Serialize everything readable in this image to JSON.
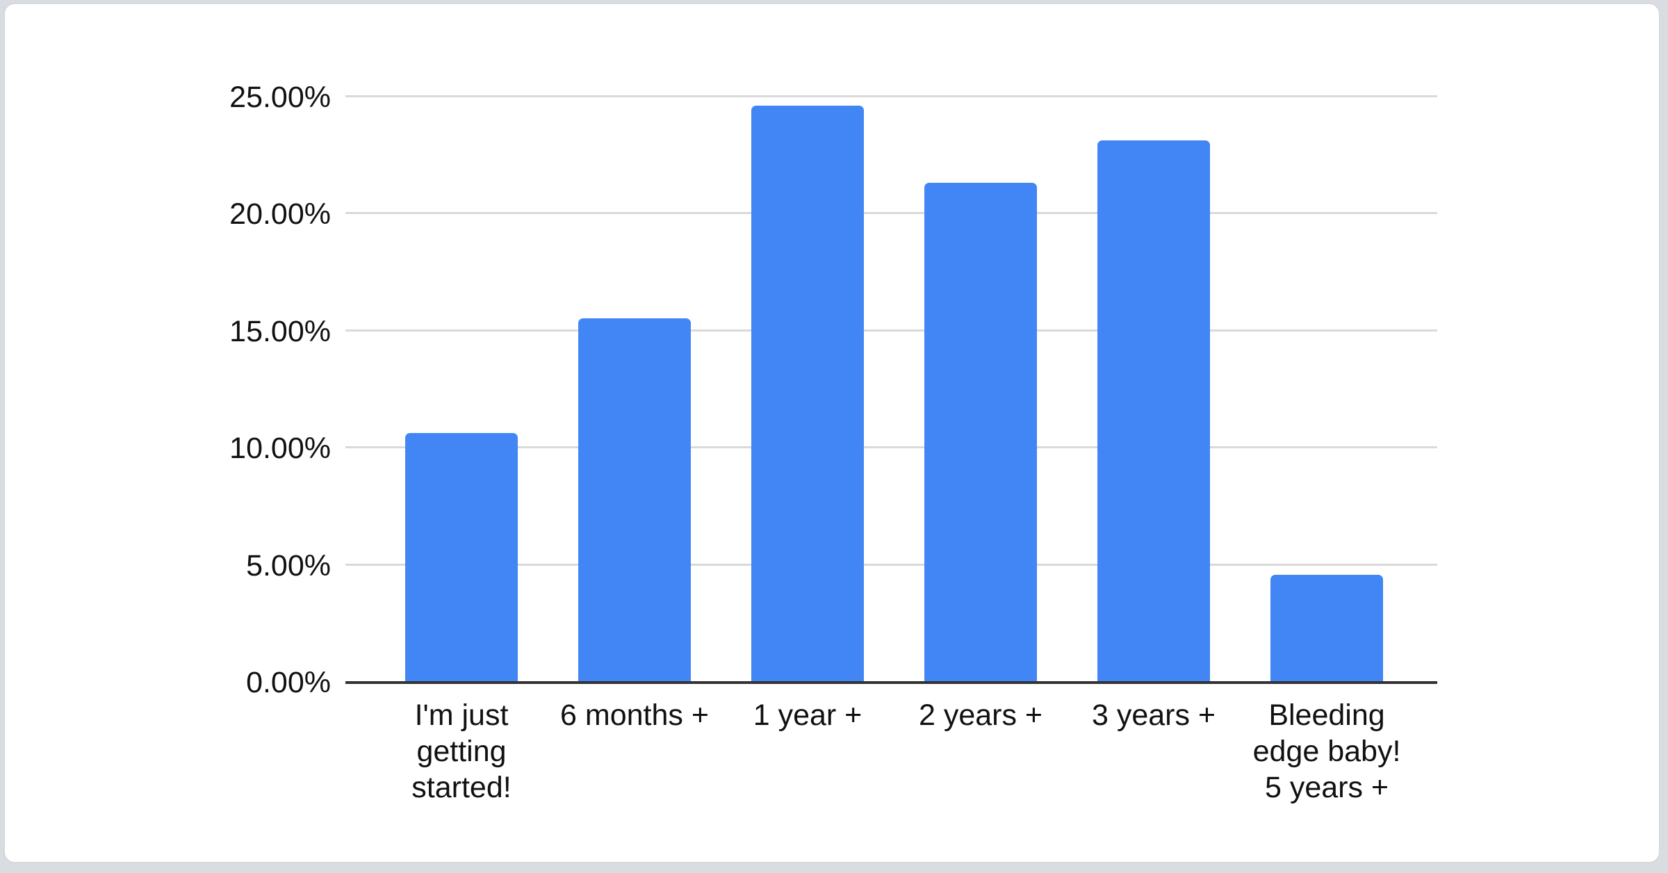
{
  "window": {
    "background_color": "#d9dce0"
  },
  "card": {
    "background_color": "#ffffff",
    "border_color": "#d5d8dc"
  },
  "chart_data": {
    "type": "bar",
    "title": "",
    "categories": [
      "I'm just getting started!",
      "6 months +",
      "1 year +",
      "2 years +",
      "3 years +",
      "Bleeding edge baby! 5 years +"
    ],
    "category_lines": [
      [
        "I'm just",
        "getting",
        "started!"
      ],
      [
        "6 months +"
      ],
      [
        "1 year +"
      ],
      [
        "2 years +"
      ],
      [
        "3 years +"
      ],
      [
        "Bleeding",
        "edge baby!",
        "5 years +"
      ]
    ],
    "values": [
      10.66,
      15.56,
      24.64,
      21.36,
      23.16,
      4.6
    ],
    "unit": "%",
    "xlabel": "",
    "ylabel": "",
    "ylim": [
      0,
      25
    ],
    "yticks": [
      0,
      5,
      10,
      15,
      20,
      25
    ],
    "ytick_labels": [
      "0.00%",
      "5.00%",
      "10.00%",
      "15.00%",
      "20.00%",
      "25.00%"
    ],
    "grid": true,
    "legend": "none",
    "bar_color": "#4285f4",
    "gridline_color": "#d9d9d9",
    "axis_line_color": "#333333",
    "text_color": "#111111"
  }
}
